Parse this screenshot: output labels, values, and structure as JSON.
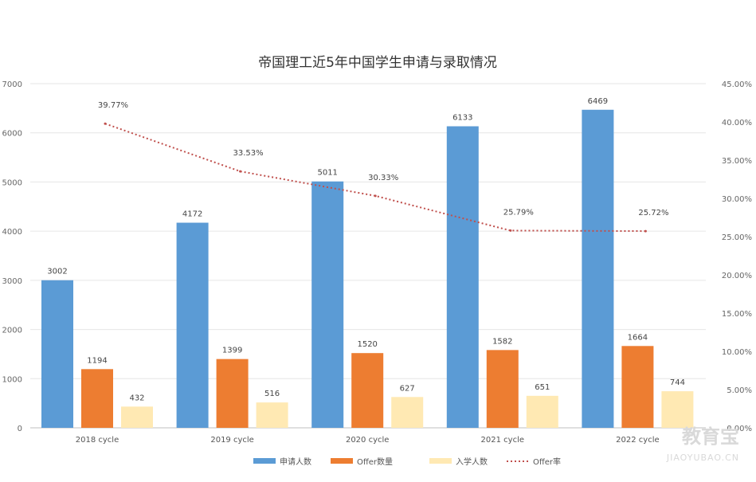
{
  "chart_data": {
    "type": "bar",
    "title": "帝国理工近5年中国学生申请与录取情况",
    "categories": [
      "2018 cycle",
      "2019 cycle",
      "2020 cycle",
      "2021 cycle",
      "2022 cycle"
    ],
    "series": [
      {
        "name": "申请人数",
        "type": "bar",
        "axis": "left",
        "color": "#5b9bd5",
        "values": [
          3002,
          4172,
          5011,
          6133,
          6469
        ]
      },
      {
        "name": "Offer数量",
        "type": "bar",
        "axis": "left",
        "color": "#ed7d31",
        "values": [
          1194,
          1399,
          1520,
          1582,
          1664
        ]
      },
      {
        "name": "入学人数",
        "type": "bar",
        "axis": "left",
        "color": "#ffe9b3",
        "values": [
          432,
          516,
          627,
          651,
          744
        ]
      },
      {
        "name": "Offer率",
        "type": "line",
        "axis": "right",
        "style": "dotted",
        "color": "#c0504d",
        "values": [
          39.77,
          33.53,
          30.33,
          25.79,
          25.72
        ],
        "labels": [
          "39.77%",
          "33.53%",
          "30.33%",
          "25.79%",
          "25.72%"
        ]
      }
    ],
    "y_left": {
      "min": 0,
      "max": 7000,
      "ticks": [
        "0",
        "1000",
        "2000",
        "3000",
        "4000",
        "5000",
        "6000",
        "7000"
      ]
    },
    "y_right": {
      "min": 0,
      "max": 45,
      "ticks": [
        "0.00%",
        "5.00%",
        "10.00%",
        "15.00%",
        "20.00%",
        "25.00%",
        "30.00%",
        "35.00%",
        "40.00%",
        "45.00%"
      ]
    },
    "grid": true,
    "legend": "bottom"
  },
  "watermark": {
    "text": "教育宝",
    "sub": "JIAOYUBAO.CN"
  }
}
